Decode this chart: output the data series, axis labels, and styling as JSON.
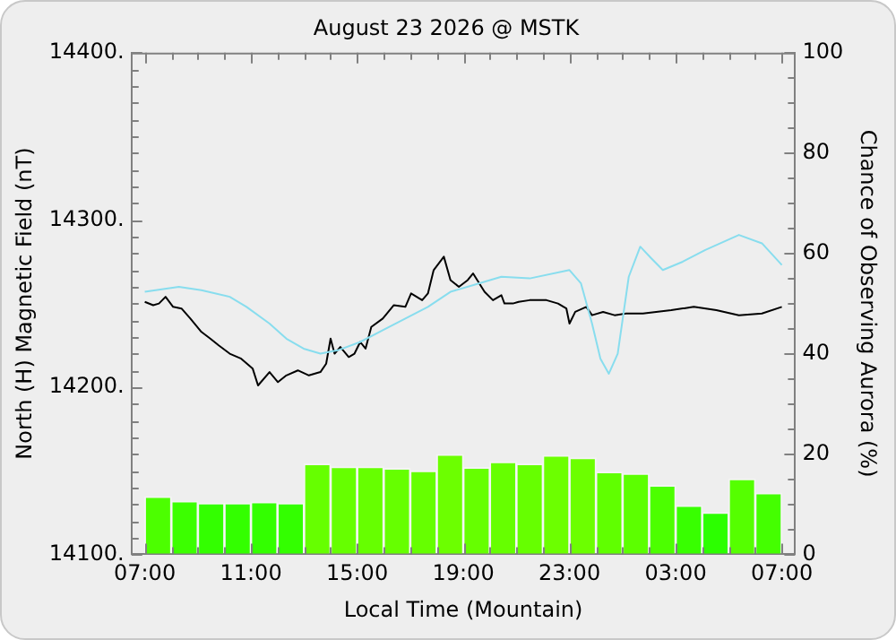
{
  "chart_data": {
    "type": "line",
    "title": "August 23 2026 @ MSTK",
    "xlabel": "Local Time (Mountain)",
    "ylabel": "North (H) Magnetic Field (nT)",
    "y2label": "Chance of Observing Aurora (%)",
    "xlim": [
      "2026-08-23T07:00",
      "2026-08-24T07:00"
    ],
    "xticks": [
      {
        "value": "2026-08-23T07:00",
        "label": "07:00"
      },
      {
        "value": "2026-08-23T08:00",
        "label": null
      },
      {
        "value": "2026-08-23T09:00",
        "label": null
      },
      {
        "value": "2026-08-23T10:00",
        "label": null
      },
      {
        "value": "2026-08-23T11:00",
        "label": "11:00"
      },
      {
        "value": "2026-08-23T12:00",
        "label": null
      },
      {
        "value": "2026-08-23T13:00",
        "label": null
      },
      {
        "value": "2026-08-23T14:00",
        "label": null
      },
      {
        "value": "2026-08-23T15:00",
        "label": "15:00"
      },
      {
        "value": "2026-08-23T16:00",
        "label": null
      },
      {
        "value": "2026-08-23T17:00",
        "label": null
      },
      {
        "value": "2026-08-23T18:00",
        "label": null
      },
      {
        "value": "2026-08-23T19:00",
        "label": "19:00"
      },
      {
        "value": "2026-08-23T20:00",
        "label": null
      },
      {
        "value": "2026-08-23T21:00",
        "label": null
      },
      {
        "value": "2026-08-23T22:00",
        "label": null
      },
      {
        "value": "2026-08-23T23:00",
        "label": "23:00"
      },
      {
        "value": "2026-08-24T00:00",
        "label": null
      },
      {
        "value": "2026-08-24T01:00",
        "label": null
      },
      {
        "value": "2026-08-24T02:00",
        "label": null
      },
      {
        "value": "2026-08-24T03:00",
        "label": "03:00"
      },
      {
        "value": "2026-08-24T04:00",
        "label": null
      },
      {
        "value": "2026-08-24T05:00",
        "label": null
      },
      {
        "value": "2026-08-24T06:00",
        "label": null
      },
      {
        "value": "2026-08-24T07:00",
        "label": "07:00"
      }
    ],
    "ylim": [
      14100,
      14400
    ],
    "yticks": [
      {
        "value": 14100,
        "label": "14100."
      },
      {
        "value": 14110,
        "label": null
      },
      {
        "value": 14120,
        "label": null
      },
      {
        "value": 14130,
        "label": null
      },
      {
        "value": 14140,
        "label": null
      },
      {
        "value": 14150,
        "label": null
      },
      {
        "value": 14160,
        "label": null
      },
      {
        "value": 14170,
        "label": null
      },
      {
        "value": 14180,
        "label": null
      },
      {
        "value": 14190,
        "label": null
      },
      {
        "value": 14200,
        "label": "14200."
      },
      {
        "value": 14210,
        "label": null
      },
      {
        "value": 14220,
        "label": null
      },
      {
        "value": 14230,
        "label": null
      },
      {
        "value": 14240,
        "label": null
      },
      {
        "value": 14250,
        "label": null
      },
      {
        "value": 14260,
        "label": null
      },
      {
        "value": 14270,
        "label": null
      },
      {
        "value": 14280,
        "label": null
      },
      {
        "value": 14290,
        "label": null
      },
      {
        "value": 14300,
        "label": "14300."
      },
      {
        "value": 14310,
        "label": null
      },
      {
        "value": 14320,
        "label": null
      },
      {
        "value": 14330,
        "label": null
      },
      {
        "value": 14340,
        "label": null
      },
      {
        "value": 14350,
        "label": null
      },
      {
        "value": 14360,
        "label": null
      },
      {
        "value": 14370,
        "label": null
      },
      {
        "value": 14380,
        "label": null
      },
      {
        "value": 14390,
        "label": null
      },
      {
        "value": 14400,
        "label": "14400."
      }
    ],
    "y2lim": [
      0,
      100
    ],
    "y2ticks": [
      0,
      {
        "value": 5,
        "label": null
      },
      {
        "value": 10,
        "label": null
      },
      {
        "value": 15,
        "label": null
      },
      20,
      {
        "value": 25,
        "label": null
      },
      {
        "value": 30,
        "label": null
      },
      {
        "value": 35,
        "label": null
      },
      40,
      {
        "value": 45,
        "label": null
      },
      {
        "value": 50,
        "label": null
      },
      {
        "value": 55,
        "label": null
      },
      60,
      {
        "value": 65,
        "label": null
      },
      {
        "value": 70,
        "label": null
      },
      {
        "value": 75,
        "label": null
      },
      80,
      {
        "value": 85,
        "label": null
      },
      {
        "value": 90,
        "label": null
      },
      {
        "value": 95,
        "label": null
      },
      100
    ],
    "grid": false,
    "marker": "none",
    "line_style": "solid",
    "series": [
      {
        "type": "bar",
        "axis": "y2",
        "x": [
          "2026-08-23T07:30",
          "2026-08-23T08:30",
          "2026-08-23T09:30",
          "2026-08-23T10:30",
          "2026-08-23T11:30",
          "2026-08-23T12:30",
          "2026-08-23T13:30",
          "2026-08-23T14:30",
          "2026-08-23T15:30",
          "2026-08-23T16:30",
          "2026-08-23T17:30",
          "2026-08-23T18:30",
          "2026-08-23T19:30",
          "2026-08-23T20:30",
          "2026-08-23T21:30",
          "2026-08-23T22:30",
          "2026-08-23T23:30",
          "2026-08-24T00:30",
          "2026-08-24T01:30",
          "2026-08-24T02:30",
          "2026-08-24T03:30",
          "2026-08-24T04:30",
          "2026-08-24T05:30",
          "2026-08-24T06:30"
        ],
        "values": [
          11.5,
          10.6,
          10.2,
          10.2,
          10.4,
          10.2,
          18.0,
          17.4,
          17.4,
          17.1,
          16.6,
          19.9,
          17.3,
          18.4,
          18.0,
          19.7,
          19.2,
          16.4,
          16.1,
          13.7,
          9.7,
          8.3,
          15.0,
          12.2
        ],
        "colors": [
          "#4cff00",
          "#3cff00",
          "#33ff00",
          "#33ff00",
          "#33ff00",
          "#33ff00",
          "#66ff00",
          "#66ff00",
          "#66ff00",
          "#66ff00",
          "#66ff00",
          "#6cff00",
          "#66ff00",
          "#66ff00",
          "#66ff00",
          "#6cff00",
          "#6cff00",
          "#60ff00",
          "#5cff00",
          "#4cff00",
          "#38ff00",
          "#2cff00",
          "#55ff00",
          "#44ff00"
        ]
      },
      {
        "axis": "y",
        "color": "#88ddee",
        "x": [
          "2026-08-23T07:00",
          "2026-08-23T08:17",
          "2026-08-23T09:08",
          "2026-08-23T10:12",
          "2026-08-23T10:50",
          "2026-08-23T11:42",
          "2026-08-23T12:20",
          "2026-08-23T12:59",
          "2026-08-23T13:37",
          "2026-08-23T14:16",
          "2026-08-23T15:07",
          "2026-08-23T15:58",
          "2026-08-23T16:49",
          "2026-08-23T17:40",
          "2026-08-23T18:31",
          "2026-08-23T19:35",
          "2026-08-23T20:26",
          "2026-08-23T21:30",
          "2026-08-23T23:00",
          "2026-08-23T23:26",
          "2026-08-23T23:51",
          "2026-08-24T00:10",
          "2026-08-24T00:29",
          "2026-08-24T00:49",
          "2026-08-24T01:14",
          "2026-08-24T01:40",
          "2026-08-24T02:05",
          "2026-08-24T02:31",
          "2026-08-24T03:16",
          "2026-08-24T04:07",
          "2026-08-24T05:23",
          "2026-08-24T06:15",
          "2026-08-24T07:00"
        ],
        "values": [
          14257,
          14260,
          14258,
          14254,
          14248,
          14238,
          14229,
          14223,
          14220,
          14222,
          14227,
          14234,
          14241,
          14248,
          14257,
          14262,
          14266,
          14265,
          14270,
          14262,
          14238,
          14217,
          14208,
          14220,
          14266,
          14284,
          14277,
          14270,
          14275,
          14282,
          14291,
          14286,
          14273
        ]
      },
      {
        "axis": "y",
        "color": "#000000",
        "x": [
          "2026-08-23T07:00",
          "2026-08-23T07:19",
          "2026-08-23T07:32",
          "2026-08-23T07:47",
          "2026-08-23T08:04",
          "2026-08-23T08:23",
          "2026-08-23T08:43",
          "2026-08-23T09:08",
          "2026-08-23T09:28",
          "2026-08-23T09:47",
          "2026-08-23T10:12",
          "2026-08-23T10:38",
          "2026-08-23T11:04",
          "2026-08-23T11:16",
          "2026-08-23T11:42",
          "2026-08-23T12:01",
          "2026-08-23T12:20",
          "2026-08-23T12:46",
          "2026-08-23T13:11",
          "2026-08-23T13:37",
          "2026-08-23T13:50",
          "2026-08-23T14:00",
          "2026-08-23T14:09",
          "2026-08-23T14:22",
          "2026-08-23T14:41",
          "2026-08-23T14:54",
          "2026-08-23T15:07",
          "2026-08-23T15:19",
          "2026-08-23T15:32",
          "2026-08-23T15:58",
          "2026-08-23T16:23",
          "2026-08-23T16:49",
          "2026-08-23T17:02",
          "2026-08-23T17:27",
          "2026-08-23T17:40",
          "2026-08-23T17:53",
          "2026-08-23T18:16",
          "2026-08-23T18:31",
          "2026-08-23T18:50",
          "2026-08-23T19:10",
          "2026-08-23T19:22",
          "2026-08-23T19:48",
          "2026-08-23T20:07",
          "2026-08-23T20:26",
          "2026-08-23T20:33",
          "2026-08-23T20:52",
          "2026-08-23T21:05",
          "2026-08-23T21:30",
          "2026-08-23T22:08",
          "2026-08-23T22:34",
          "2026-08-23T22:53",
          "2026-08-23T23:00",
          "2026-08-23T23:13",
          "2026-08-23T23:38",
          "2026-08-23T23:51",
          "2026-08-24T00:16",
          "2026-08-24T00:42",
          "2026-08-24T01:08",
          "2026-08-24T01:46",
          "2026-08-24T02:50",
          "2026-08-24T03:41",
          "2026-08-24T04:32",
          "2026-08-24T05:23",
          "2026-08-24T06:15",
          "2026-08-24T07:00"
        ],
        "values": [
          14251,
          14249,
          14250,
          14254,
          14248,
          14247,
          14241,
          14233,
          14229,
          14225,
          14220,
          14217,
          14211,
          14201,
          14209,
          14203,
          14207,
          14210,
          14207,
          14209,
          14214,
          14229,
          14220,
          14224,
          14218,
          14220,
          14227,
          14223,
          14236,
          14241,
          14249,
          14248,
          14256,
          14252,
          14256,
          14270,
          14278,
          14264,
          14260,
          14264,
          14268,
          14257,
          14252,
          14255,
          14250,
          14250,
          14251,
          14252,
          14252,
          14250,
          14247,
          14238,
          14245,
          14248,
          14243,
          14245,
          14243,
          14244,
          14244,
          14246,
          14248,
          14246,
          14243,
          14244,
          14248
        ]
      }
    ]
  }
}
